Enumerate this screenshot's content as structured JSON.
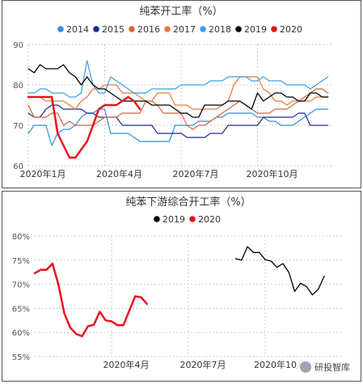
{
  "chart_data": [
    {
      "type": "line",
      "title": "纯苯开工率（%）",
      "ylim": [
        60,
        90
      ],
      "yticks": [
        60,
        70,
        80,
        90
      ],
      "xlim": [
        0,
        52
      ],
      "xticks": [
        {
          "x": 0,
          "label": "2020年1月"
        },
        {
          "x": 13,
          "label": "2020年4月"
        },
        {
          "x": 26,
          "label": "2020年7月"
        },
        {
          "x": 39,
          "label": "2020年10月"
        }
      ],
      "legend_position": "top-center",
      "series": [
        {
          "name": "2014",
          "color": "#2f8fe0",
          "width": 1.2,
          "values": [
            68,
            70,
            70,
            70,
            65,
            68,
            69,
            69,
            70,
            72,
            73,
            73,
            74,
            74,
            68,
            68,
            68,
            68,
            67,
            66,
            66,
            66,
            66,
            66,
            66,
            70,
            70,
            70,
            70,
            71,
            71,
            71,
            72,
            72,
            73,
            73,
            73,
            73,
            73,
            72,
            72,
            71,
            71,
            70,
            70,
            70,
            71,
            72,
            73,
            74,
            74,
            74
          ]
        },
        {
          "name": "2015",
          "color": "#1b2a8c",
          "width": 1.2,
          "values": [
            73,
            72,
            72,
            74,
            75,
            75,
            74,
            74,
            74,
            74,
            73,
            73,
            72,
            72,
            72,
            72,
            70,
            70,
            70,
            70,
            70,
            70,
            68,
            68,
            68,
            68,
            68,
            67,
            67,
            67,
            67,
            68,
            68,
            68,
            70,
            70,
            70,
            70,
            70,
            70,
            72,
            72,
            72,
            72,
            72,
            72,
            73,
            73,
            70,
            70,
            70,
            70
          ]
        },
        {
          "name": "2016",
          "color": "#d9623b",
          "width": 1.2,
          "values": [
            75,
            72,
            72,
            72,
            73,
            73,
            70,
            71,
            70,
            70,
            70,
            70,
            71,
            72,
            72,
            72,
            73,
            73,
            73,
            73,
            76,
            76,
            75,
            73,
            73,
            73,
            73,
            70,
            69,
            70,
            70,
            71,
            72,
            73,
            74,
            75,
            76,
            75,
            74,
            73,
            73,
            73,
            74,
            74,
            74,
            75,
            76,
            77,
            78,
            79,
            79,
            78
          ]
        },
        {
          "name": "2017",
          "color": "#e8793f",
          "width": 1.2,
          "values": [
            77,
            77,
            77,
            76,
            76,
            76,
            76,
            75,
            74,
            76,
            77,
            79,
            79,
            80,
            80,
            80,
            78,
            78,
            78,
            77,
            76,
            76,
            78,
            78,
            78,
            75,
            75,
            75,
            74,
            74,
            74,
            74,
            74,
            75,
            76,
            80,
            82,
            82,
            82,
            82,
            79,
            78,
            76,
            76,
            75,
            76,
            76,
            76,
            76,
            77,
            77,
            77
          ]
        },
        {
          "name": "2018",
          "color": "#3a9ee8",
          "width": 1.2,
          "values": [
            78,
            78,
            79,
            79,
            78,
            78,
            78,
            77,
            77,
            78,
            86,
            80,
            78,
            78,
            82,
            81,
            80,
            79,
            78,
            78,
            78,
            79,
            79,
            79,
            79,
            79,
            80,
            80,
            80,
            80,
            80,
            81,
            81,
            81,
            82,
            82,
            82,
            82,
            81,
            81,
            82,
            81,
            81,
            81,
            80,
            80,
            80,
            80,
            79,
            80,
            81,
            82
          ]
        },
        {
          "name": "2019",
          "color": "#000000",
          "width": 1.3,
          "values": [
            84,
            83,
            85,
            84,
            84,
            84,
            85,
            83,
            82,
            80,
            82,
            80,
            79,
            79,
            78,
            77,
            76,
            76,
            76,
            76,
            76,
            75,
            75,
            75,
            75,
            74,
            73,
            73,
            72,
            72,
            75,
            75,
            75,
            75,
            76,
            76,
            76,
            75,
            74,
            78,
            76,
            77,
            78,
            78,
            77,
            77,
            76,
            76,
            78,
            78,
            77,
            77
          ]
        },
        {
          "name": "2020",
          "color": "#e8141e",
          "width": 2.5,
          "values": [
            77,
            77,
            77,
            77,
            77,
            68,
            65,
            62,
            62,
            64,
            66,
            70,
            74,
            75,
            75,
            75,
            76,
            77,
            76,
            74
          ]
        }
      ]
    },
    {
      "type": "line",
      "title": "纯苯下游综合开工率（%）",
      "ylim": [
        55,
        80
      ],
      "yticks": [
        {
          "v": 55,
          "label": "55%"
        },
        {
          "v": 60,
          "label": "60%"
        },
        {
          "v": 65,
          "label": "65%"
        },
        {
          "v": 70,
          "label": "70%"
        },
        {
          "v": 75,
          "label": "75%"
        },
        {
          "v": 80,
          "label": "80%"
        }
      ],
      "xlim": [
        0,
        52
      ],
      "xticks": [
        {
          "x": 13,
          "label": "2020年4月"
        },
        {
          "x": 26,
          "label": "2020年7月"
        },
        {
          "x": 39,
          "label": "2020年10月"
        }
      ],
      "legend_position": "top-center",
      "series": [
        {
          "name": "2019",
          "color": "#000000",
          "width": 1.3,
          "segments": [
            {
              "x0": 34,
              "values": [
                75.3,
                75.0,
                77.8,
                76.6,
                76.6,
                75.1,
                74.8,
                73.5,
                74.3,
                72.5,
                68.5,
                70.2,
                69.5,
                67.8,
                69.0,
                71.7
              ]
            }
          ]
        },
        {
          "name": "2020",
          "color": "#e8141e",
          "width": 2.5,
          "segments": [
            {
              "x0": 0,
              "values": [
                72.3,
                73.0,
                73.0,
                74.3,
                70.0,
                64.0,
                61.0,
                59.7,
                59.2,
                61.3,
                61.6,
                64.3,
                62.5,
                62.3,
                61.5,
                61.5,
                64.5,
                67.5,
                67.3,
                65.9
              ]
            }
          ]
        }
      ]
    }
  ],
  "watermark": "研投智库"
}
